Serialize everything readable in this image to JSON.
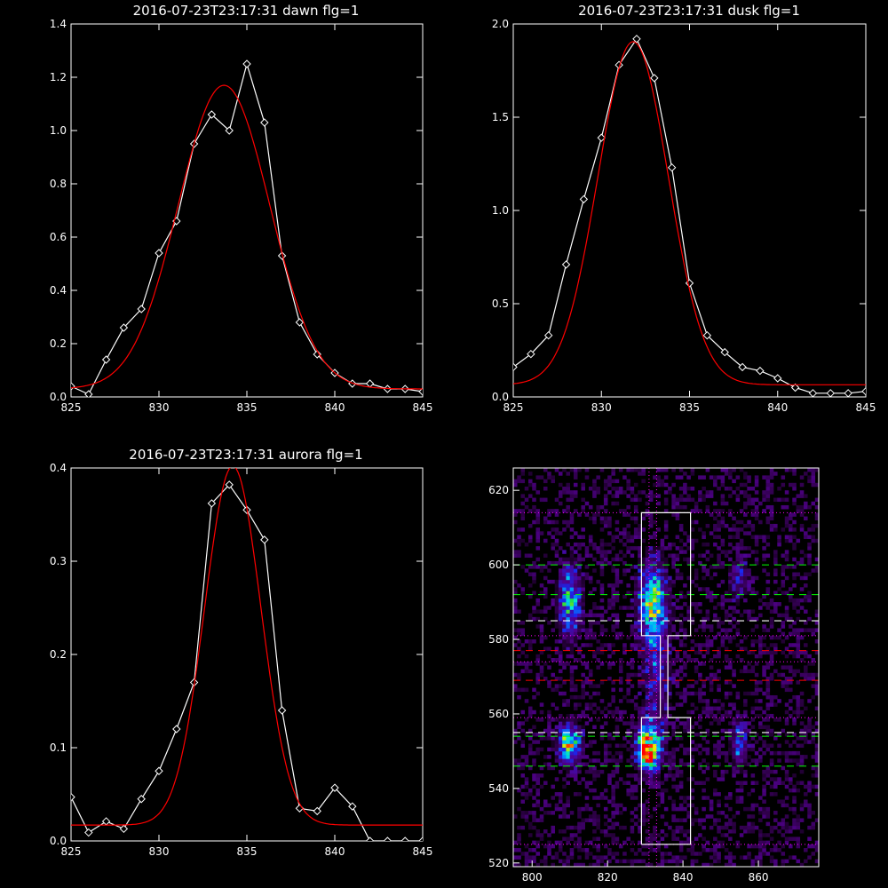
{
  "colors": {
    "background": "#000000",
    "axes": "#ffffff",
    "data_line": "#ffffff",
    "fit_line": "#ff0000",
    "green_dash": "#00ff00",
    "red_dash": "#ff0000",
    "magenta_dot": "#ff00ff"
  },
  "chart_data": [
    {
      "type": "line",
      "title": "2016-07-23T23:17:31 dawn flg=1",
      "xlim": [
        825,
        845
      ],
      "ylim": [
        0,
        1.4
      ],
      "xticks": [
        825,
        830,
        835,
        840,
        845
      ],
      "xtick_labels": [
        "825",
        "830",
        "835",
        "840",
        "845"
      ],
      "yticks": [
        0,
        0.2,
        0.4,
        0.6,
        0.8,
        1.0,
        1.2,
        1.4
      ],
      "ytick_labels": [
        "0.0",
        "0.2",
        "0.4",
        "0.6",
        "0.8",
        "1.0",
        "1.2",
        "1.4"
      ],
      "series": [
        {
          "style": "white-diamonds",
          "x": [
            825,
            826,
            827,
            828,
            829,
            830,
            831,
            832,
            833,
            834,
            835,
            836,
            837,
            838,
            839,
            840,
            841,
            842,
            843,
            844,
            845
          ],
          "y": [
            0.04,
            0.01,
            0.14,
            0.26,
            0.33,
            0.54,
            0.66,
            0.95,
            1.06,
            1.0,
            1.25,
            1.03,
            0.53,
            0.28,
            0.16,
            0.09,
            0.05,
            0.05,
            0.03,
            0.03,
            0.02
          ]
        },
        {
          "style": "red-fit",
          "fit": {
            "amp": 1.14,
            "center": 833.7,
            "sigma": 2.6,
            "offset": 0.03
          }
        }
      ]
    },
    {
      "type": "line",
      "title": "2016-07-23T23:17:31 dusk flg=1",
      "xlim": [
        825,
        845
      ],
      "ylim": [
        0,
        2.0
      ],
      "xticks": [
        825,
        830,
        835,
        840,
        845
      ],
      "xtick_labels": [
        "825",
        "830",
        "835",
        "840",
        "845"
      ],
      "yticks": [
        0,
        0.5,
        1.0,
        1.5,
        2.0
      ],
      "ytick_labels": [
        "0.0",
        "0.5",
        "1.0",
        "1.5",
        "2.0"
      ],
      "series": [
        {
          "style": "white-diamonds",
          "x": [
            825,
            826,
            827,
            828,
            829,
            830,
            831,
            832,
            833,
            834,
            835,
            836,
            837,
            838,
            839,
            840,
            841,
            842,
            843,
            844,
            845
          ],
          "y": [
            0.16,
            0.23,
            0.33,
            0.71,
            1.06,
            1.39,
            1.78,
            1.92,
            1.71,
            1.23,
            0.61,
            0.33,
            0.24,
            0.16,
            0.14,
            0.1,
            0.05,
            0.02,
            0.02,
            0.02,
            0.03
          ]
        },
        {
          "style": "red-fit",
          "fit": {
            "amp": 1.84,
            "center": 831.8,
            "sigma": 2.0,
            "offset": 0.065
          }
        }
      ]
    },
    {
      "type": "line",
      "title": "2016-07-23T23:17:31 aurora flg=1",
      "xlim": [
        825,
        845
      ],
      "ylim": [
        0,
        0.4
      ],
      "xticks": [
        825,
        830,
        835,
        840,
        845
      ],
      "xtick_labels": [
        "825",
        "830",
        "835",
        "840",
        "845"
      ],
      "yticks": [
        0,
        0.1,
        0.2,
        0.3,
        0.4
      ],
      "ytick_labels": [
        "0.0",
        "0.1",
        "0.2",
        "0.3",
        "0.4"
      ],
      "series": [
        {
          "style": "white-diamonds",
          "x": [
            825,
            826,
            827,
            828,
            829,
            830,
            831,
            832,
            833,
            834,
            835,
            836,
            837,
            838,
            839,
            840,
            841,
            842,
            843,
            844,
            845
          ],
          "y": [
            0.047,
            0.009,
            0.021,
            0.013,
            0.045,
            0.075,
            0.12,
            0.17,
            0.362,
            0.382,
            0.355,
            0.323,
            0.14,
            0.035,
            0.032,
            0.057,
            0.037,
            0.0,
            0.0,
            0.0,
            0.0
          ]
        },
        {
          "style": "red-fit",
          "fit": {
            "amp": 0.385,
            "center": 834.2,
            "sigma": 1.6,
            "offset": 0.017
          }
        }
      ]
    },
    {
      "type": "heatmap",
      "xlim": [
        795,
        876
      ],
      "ylim": [
        519,
        626
      ],
      "xticks": [
        800,
        820,
        840,
        860
      ],
      "xtick_labels": [
        "800",
        "820",
        "840",
        "860"
      ],
      "yticks": [
        520,
        540,
        560,
        580,
        600,
        620
      ],
      "ytick_labels": [
        "520",
        "540",
        "560",
        "580",
        "600",
        "620"
      ],
      "hotspots": [
        {
          "x": 810,
          "y": 552,
          "amp": 0.65,
          "sx": 2.0,
          "sy": 3.5
        },
        {
          "x": 810,
          "y": 590,
          "amp": 0.5,
          "sx": 2.0,
          "sy": 6.5
        },
        {
          "x": 831,
          "y": 551,
          "amp": 1.0,
          "sx": 2.0,
          "sy": 4.0
        },
        {
          "x": 832,
          "y": 590,
          "amp": 0.6,
          "sx": 2.5,
          "sy": 7.0
        },
        {
          "x": 855,
          "y": 552,
          "amp": 0.35,
          "sx": 1.5,
          "sy": 4.0
        },
        {
          "x": 855,
          "y": 596,
          "amp": 0.2,
          "sx": 2.0,
          "sy": 4.0
        },
        {
          "x": 833,
          "y": 570,
          "amp": 0.25,
          "sx": 2.5,
          "sy": 10.0
        }
      ],
      "white_box": [
        [
          829,
          525
        ],
        [
          842,
          525
        ],
        [
          842,
          559
        ],
        [
          836,
          559
        ],
        [
          836,
          581
        ],
        [
          842,
          581
        ],
        [
          842,
          614
        ],
        [
          829,
          614
        ],
        [
          829,
          581
        ],
        [
          834,
          581
        ],
        [
          834,
          559
        ],
        [
          829,
          559
        ],
        [
          829,
          525
        ]
      ],
      "green_dashes_y": [
        600,
        592,
        554,
        546
      ],
      "white_dashes_y": [
        585,
        555
      ],
      "red_dashes_y": [
        577,
        569
      ],
      "magenta_dotted_y": [
        614,
        581,
        574,
        559,
        525
      ],
      "magenta_dotted_x": [
        831,
        833
      ]
    }
  ]
}
